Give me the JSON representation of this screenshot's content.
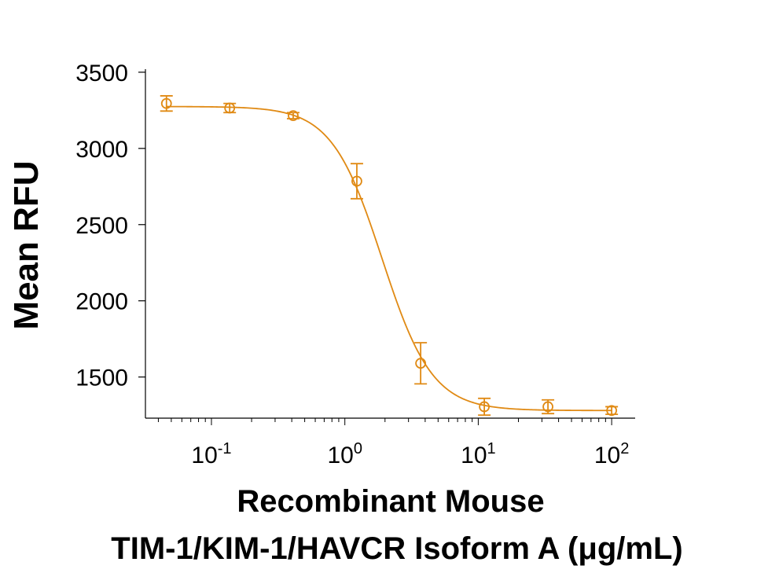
{
  "chart_data": {
    "type": "scatter",
    "title": "",
    "ylabel": "Mean RFU",
    "xlabel_line1": "Recombinant Mouse",
    "xlabel_line2": "TIM-1/KIM-1/HAVCR Isoform A (μg/mL)",
    "x_scale": "log",
    "xlim": [
      0.032,
      150
    ],
    "ylim": [
      1230,
      3520
    ],
    "yticks": [
      1500,
      2000,
      2500,
      3000,
      3500
    ],
    "ytick_labels": [
      "1500",
      "2000",
      "2500",
      "3000",
      "3500"
    ],
    "xticks": [
      {
        "value": 0.1,
        "base": "10",
        "exp": "-1"
      },
      {
        "value": 1,
        "base": "10",
        "exp": "0"
      },
      {
        "value": 10,
        "base": "10",
        "exp": "1"
      },
      {
        "value": 100,
        "base": "10",
        "exp": "2"
      }
    ],
    "grid": false,
    "color": "#E08A14",
    "series": [
      {
        "x": [
          0.046,
          0.137,
          0.41,
          1.23,
          3.7,
          11.1,
          33.3,
          100
        ],
        "y": [
          3295,
          3265,
          3215,
          2785,
          1590,
          1305,
          1305,
          1280
        ],
        "err": [
          50,
          30,
          20,
          115,
          135,
          55,
          45,
          25
        ]
      }
    ],
    "fit": {
      "bottom": 1280,
      "top": 3275,
      "ec50": 1.9,
      "hill": 2.3
    }
  }
}
